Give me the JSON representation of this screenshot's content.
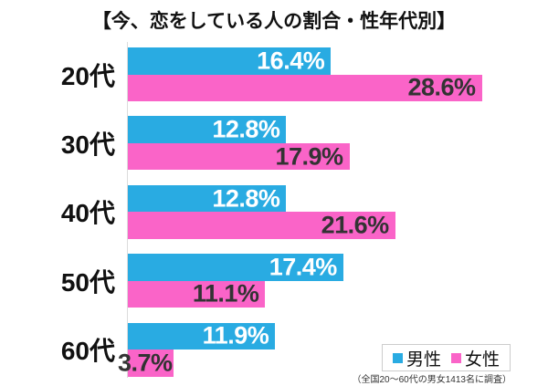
{
  "title": "【今、恋をしている人の割合・性年代別】",
  "footnote": "（全国20〜60代の男女1413名に調査）",
  "legend": {
    "items": [
      {
        "key": "male",
        "label": "男性",
        "color": "#29ABE2"
      },
      {
        "key": "female",
        "label": "女性",
        "color": "#FA64C8"
      }
    ]
  },
  "chart_data": {
    "type": "bar",
    "orientation": "horizontal",
    "title": "【今、恋をしている人の割合・性年代別】",
    "categories": [
      "20代",
      "30代",
      "40代",
      "50代",
      "60代"
    ],
    "series": [
      {
        "key": "male",
        "name": "男性",
        "color": "#29ABE2",
        "label_color": "#FFFFFF",
        "values": [
          16.4,
          12.8,
          12.8,
          17.4,
          11.9
        ]
      },
      {
        "key": "female",
        "name": "女性",
        "color": "#FA64C8",
        "label_color": "#333333",
        "values": [
          28.6,
          17.9,
          21.6,
          11.1,
          3.7
        ]
      }
    ],
    "value_suffix": "%",
    "xlim": [
      0,
      31
    ],
    "grid": false,
    "legend_position": "bottom-right",
    "axis_line_color": "#dcdcdc"
  }
}
